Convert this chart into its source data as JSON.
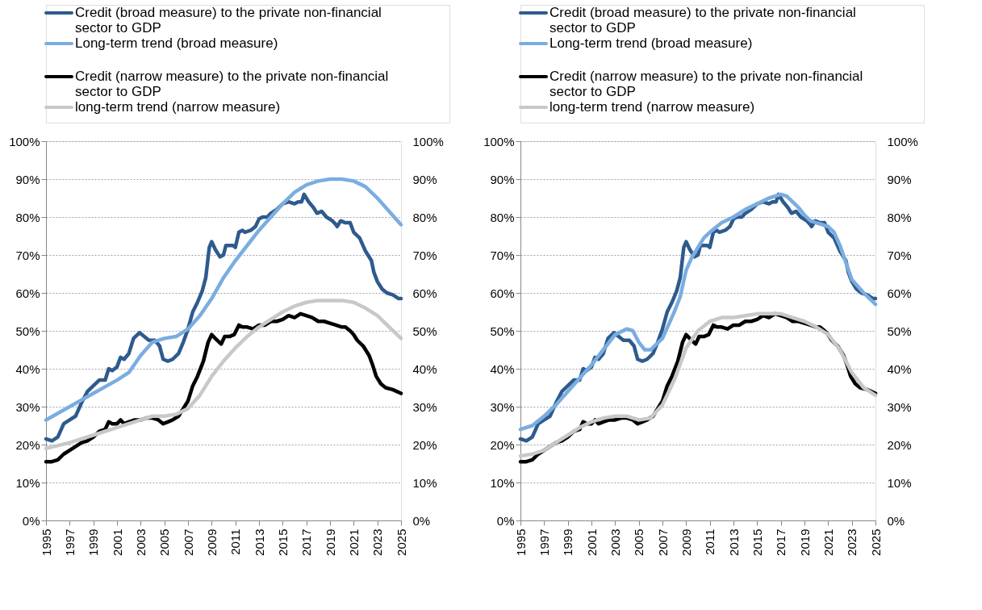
{
  "chart_data": [
    {
      "type": "line",
      "legend": "top",
      "grid": "y",
      "marker": "none",
      "line_style": "solid",
      "xlim": [
        1995,
        2025
      ],
      "xticks": [
        1995,
        1997,
        1999,
        2001,
        2003,
        2005,
        2007,
        2009,
        2011,
        2013,
        2015,
        2017,
        2019,
        2021,
        2023,
        2025
      ],
      "ylim": [
        0,
        100
      ],
      "yticks": [
        {
          "value": 0,
          "label": "0%"
        },
        {
          "value": 10,
          "label": "10%"
        },
        {
          "value": 20,
          "label": "20%"
        },
        {
          "value": 30,
          "label": "30%"
        },
        {
          "value": 40,
          "label": "40%"
        },
        {
          "value": 50,
          "label": "50%"
        },
        {
          "value": 60,
          "label": "60%"
        },
        {
          "value": 70,
          "label": "70%"
        },
        {
          "value": 80,
          "label": "80%"
        },
        {
          "value": 90,
          "label": "90%"
        },
        {
          "value": 100,
          "label": "100%"
        }
      ],
      "y2lim": [
        0,
        100
      ],
      "y2ticks": [
        {
          "value": 0,
          "label": "0%"
        },
        {
          "value": 10,
          "label": "10%"
        },
        {
          "value": 20,
          "label": "20%"
        },
        {
          "value": 30,
          "label": "30%"
        },
        {
          "value": 40,
          "label": "40%"
        },
        {
          "value": 50,
          "label": "50%"
        },
        {
          "value": 60,
          "label": "60%"
        },
        {
          "value": 70,
          "label": "70%"
        },
        {
          "value": 80,
          "label": "80%"
        },
        {
          "value": 90,
          "label": "90%"
        },
        {
          "value": 100,
          "label": "100%"
        }
      ],
      "series": [
        {
          "name": "Credit (broad measure) to the private non-financial sector to GDP",
          "color": "#2e5a8e",
          "x": [
            1995,
            1995.5,
            1996,
            1996.5,
            1997,
            1997.5,
            1998,
            1998.5,
            1999,
            1999.5,
            2000,
            2000.3,
            2000.6,
            2001,
            2001.3,
            2001.6,
            2002,
            2002.4,
            2002.9,
            2003.3,
            2003.7,
            2004.2,
            2004.6,
            2004.9,
            2005.3,
            2005.7,
            2006.2,
            2006.6,
            2007,
            2007.4,
            2007.8,
            2008.2,
            2008.5,
            2008.8,
            2009,
            2009.3,
            2009.7,
            2010,
            2010.2,
            2010.5,
            2010.8,
            2011,
            2011.3,
            2011.6,
            2011.8,
            2012.3,
            2012.7,
            2013,
            2013.3,
            2013.7,
            2014,
            2014.5,
            2015,
            2015.5,
            2016,
            2016.3,
            2016.6,
            2016.8,
            2017.2,
            2017.6,
            2017.9,
            2018.3,
            2018.7,
            2019.2,
            2019.5,
            2019.6,
            2019.9,
            2020.3,
            2020.7,
            2021,
            2021.5,
            2022,
            2022.5,
            2022.7,
            2023,
            2023.4,
            2023.8,
            2024.3,
            2024.8,
            2025
          ],
          "values": [
            21.5,
            21,
            22,
            25.5,
            26.5,
            27.5,
            31,
            34,
            35.5,
            37,
            37,
            40,
            39.5,
            40.5,
            43,
            42.5,
            44,
            48,
            49.5,
            48.5,
            47.5,
            47.5,
            46,
            42.5,
            42,
            42.5,
            44,
            47,
            50.5,
            55,
            57.5,
            60.5,
            64,
            72,
            73.5,
            71.5,
            69.5,
            70,
            72.5,
            72.5,
            72.5,
            72,
            76,
            76.5,
            76,
            76.5,
            77.5,
            79.5,
            80,
            80,
            81,
            82,
            83.5,
            84,
            83.5,
            84,
            84,
            86,
            84,
            82.5,
            81,
            81.5,
            80,
            79,
            78,
            77.5,
            79,
            78.5,
            78.5,
            76,
            74.5,
            71,
            68.5,
            65.5,
            63,
            61,
            60,
            59.5,
            58.5,
            58.5
          ]
        },
        {
          "name": "Long-term trend (broad measure)",
          "color": "#7aade0",
          "x": [
            1995,
            1997,
            1999,
            2001,
            2002,
            2003,
            2004,
            2005,
            2006,
            2007,
            2008,
            2009,
            2010,
            2011,
            2012,
            2013,
            2014,
            2015,
            2016,
            2017,
            2018,
            2019,
            2020,
            2021,
            2022,
            2023,
            2024,
            2025
          ],
          "values": [
            26.5,
            30,
            33.5,
            37,
            39,
            43.5,
            47,
            48,
            48.5,
            50.5,
            54,
            58.5,
            64,
            68.5,
            72.5,
            76.5,
            80,
            83.5,
            86.5,
            88.5,
            89.5,
            90,
            90,
            89.5,
            88,
            85,
            81.5,
            78
          ]
        },
        {
          "name": "Credit (narrow measure) to the private non-financial sector to GDP",
          "color": "#000000",
          "x": [
            1995,
            1995.5,
            1996,
            1996.5,
            1997,
            1997.5,
            1998,
            1998.5,
            1999,
            1999.5,
            2000,
            2000.3,
            2000.6,
            2001,
            2001.3,
            2001.6,
            2002,
            2002.5,
            2003,
            2003.5,
            2004,
            2004.5,
            2004.9,
            2005.3,
            2005.7,
            2006.2,
            2006.6,
            2007,
            2007.4,
            2007.8,
            2008.3,
            2008.7,
            2009,
            2009.3,
            2009.8,
            2010.1,
            2010.5,
            2010.9,
            2011.3,
            2011.6,
            2012,
            2012.5,
            2013,
            2013.5,
            2014,
            2014.5,
            2015,
            2015.5,
            2016,
            2016.5,
            2017,
            2017.5,
            2018,
            2018.5,
            2019,
            2019.5,
            2020,
            2020.3,
            2020.7,
            2021,
            2021.3,
            2021.8,
            2022.3,
            2022.6,
            2022.9,
            2023.3,
            2023.7,
            2024.3,
            2025
          ],
          "values": [
            15.5,
            15.5,
            16,
            17.5,
            18.5,
            19.5,
            20.5,
            21,
            22,
            23.5,
            24,
            26,
            25.5,
            25.5,
            26.5,
            25.5,
            26,
            26.5,
            26.5,
            27,
            27,
            26.5,
            25.5,
            26,
            26.5,
            27.5,
            29.5,
            31.5,
            35.5,
            38,
            42,
            47,
            49,
            48,
            46.5,
            48.5,
            48.5,
            49,
            51.5,
            51,
            51,
            50.5,
            51.5,
            51.5,
            52.5,
            52.5,
            53,
            54,
            53.5,
            54.5,
            54,
            53.5,
            52.5,
            52.5,
            52,
            51.5,
            51,
            51,
            50,
            49,
            47.5,
            46,
            43.5,
            41,
            38,
            36,
            35,
            34.5,
            33.5
          ]
        },
        {
          "name": "long-term trend (narrow measure)",
          "color": "#c8c8c8",
          "x": [
            1995,
            1997,
            1999,
            2001,
            2003,
            2004,
            2005,
            2006,
            2007,
            2008,
            2009,
            2010,
            2011,
            2012,
            2013,
            2014,
            2015,
            2016,
            2017,
            2018,
            2019,
            2020,
            2021,
            2022,
            2023,
            2024,
            2025
          ],
          "values": [
            19,
            20.5,
            22.5,
            24.5,
            26.5,
            27.5,
            27.5,
            28,
            29.5,
            33,
            38,
            42,
            45.5,
            48.5,
            51,
            53,
            55,
            56.5,
            57.5,
            58,
            58,
            58,
            57.5,
            56,
            54,
            51,
            48
          ]
        }
      ]
    },
    {
      "type": "line",
      "legend": "top",
      "grid": "y",
      "marker": "none",
      "line_style": "solid",
      "xlim": [
        1995,
        2025
      ],
      "xticks": [
        1995,
        1997,
        1999,
        2001,
        2003,
        2005,
        2007,
        2009,
        2011,
        2013,
        2015,
        2017,
        2019,
        2021,
        2023,
        2025
      ],
      "ylim": [
        0,
        100
      ],
      "yticks": [
        {
          "value": 0,
          "label": "0%"
        },
        {
          "value": 10,
          "label": "10%"
        },
        {
          "value": 20,
          "label": "20%"
        },
        {
          "value": 30,
          "label": "30%"
        },
        {
          "value": 40,
          "label": "40%"
        },
        {
          "value": 50,
          "label": "50%"
        },
        {
          "value": 60,
          "label": "60%"
        },
        {
          "value": 70,
          "label": "70%"
        },
        {
          "value": 80,
          "label": "80%"
        },
        {
          "value": 90,
          "label": "90%"
        },
        {
          "value": 100,
          "label": "100%"
        }
      ],
      "y2lim": [
        0,
        100
      ],
      "y2ticks": [
        {
          "value": 0,
          "label": "0%"
        },
        {
          "value": 10,
          "label": "10%"
        },
        {
          "value": 20,
          "label": "20%"
        },
        {
          "value": 30,
          "label": "30%"
        },
        {
          "value": 40,
          "label": "40%"
        },
        {
          "value": 50,
          "label": "50%"
        },
        {
          "value": 60,
          "label": "60%"
        },
        {
          "value": 70,
          "label": "70%"
        },
        {
          "value": 80,
          "label": "80%"
        },
        {
          "value": 90,
          "label": "90%"
        },
        {
          "value": 100,
          "label": "100%"
        }
      ],
      "series": [
        {
          "name": "Credit (broad measure) to the private non-financial sector to GDP",
          "color": "#2e5a8e",
          "x": [
            1995,
            1995.5,
            1996,
            1996.5,
            1997,
            1997.5,
            1998,
            1998.5,
            1999,
            1999.5,
            2000,
            2000.3,
            2000.6,
            2001,
            2001.3,
            2001.6,
            2002,
            2002.4,
            2002.9,
            2003.3,
            2003.7,
            2004.2,
            2004.6,
            2004.9,
            2005.3,
            2005.7,
            2006.2,
            2006.6,
            2007,
            2007.4,
            2007.8,
            2008.2,
            2008.5,
            2008.8,
            2009,
            2009.3,
            2009.7,
            2010,
            2010.2,
            2010.5,
            2010.8,
            2011,
            2011.3,
            2011.6,
            2011.8,
            2012.3,
            2012.7,
            2013,
            2013.3,
            2013.7,
            2014,
            2014.5,
            2015,
            2015.5,
            2016,
            2016.3,
            2016.6,
            2016.8,
            2017.2,
            2017.6,
            2017.9,
            2018.3,
            2018.7,
            2019.2,
            2019.5,
            2019.6,
            2019.9,
            2020.3,
            2020.7,
            2021,
            2021.5,
            2022,
            2022.5,
            2022.7,
            2023,
            2023.4,
            2023.8,
            2024.3,
            2024.8,
            2025
          ],
          "values": [
            21.5,
            21,
            22,
            25.5,
            26.5,
            27.5,
            31,
            34,
            35.5,
            37,
            37,
            40,
            39.5,
            40.5,
            43,
            42.5,
            44,
            48,
            49.5,
            48.5,
            47.5,
            47.5,
            46,
            42.5,
            42,
            42.5,
            44,
            47,
            50.5,
            55,
            57.5,
            60.5,
            64,
            72,
            73.5,
            71.5,
            69.5,
            70,
            72.5,
            72.5,
            72.5,
            72,
            76,
            76.5,
            76,
            76.5,
            77.5,
            79.5,
            80,
            80,
            81,
            82,
            83.5,
            84,
            83.5,
            84,
            84,
            86,
            84,
            82.5,
            81,
            81.5,
            80,
            79,
            78,
            77.5,
            79,
            78.5,
            78.5,
            76,
            74.5,
            71,
            68.5,
            65.5,
            63,
            61,
            60,
            59.5,
            58.5,
            58.5
          ]
        },
        {
          "name": "Long-term trend (broad measure)",
          "color": "#7aade0",
          "x": [
            1995,
            1996,
            1997,
            1998,
            1999,
            2000,
            2001,
            2002,
            2003,
            2004,
            2004.5,
            2005,
            2005.5,
            2006,
            2007,
            2008,
            2008.5,
            2009,
            2009.5,
            2010,
            2010.5,
            2011,
            2012,
            2013,
            2014,
            2015,
            2016,
            2017,
            2017.5,
            2018,
            2018.5,
            2019,
            2019.5,
            2020,
            2021,
            2021.5,
            2022,
            2022.5,
            2023,
            2024,
            2025
          ],
          "values": [
            24,
            25,
            27.5,
            30.5,
            34,
            37.5,
            41,
            45,
            49,
            50.5,
            50,
            47,
            45,
            45,
            48,
            55,
            59,
            66,
            69.5,
            72,
            74.5,
            76,
            78.5,
            80,
            82,
            83.5,
            85,
            86,
            85.5,
            84,
            82.5,
            80.5,
            79,
            78.5,
            77.5,
            76,
            72.5,
            68,
            63.5,
            60,
            57
          ]
        },
        {
          "name": "Credit (narrow measure) to the private non-financial sector to GDP",
          "color": "#000000",
          "x": [
            1995,
            1995.5,
            1996,
            1996.5,
            1997,
            1997.5,
            1998,
            1998.5,
            1999,
            1999.5,
            2000,
            2000.3,
            2000.6,
            2001,
            2001.3,
            2001.6,
            2002,
            2002.5,
            2003,
            2003.5,
            2004,
            2004.5,
            2004.9,
            2005.3,
            2005.7,
            2006.2,
            2006.6,
            2007,
            2007.4,
            2007.8,
            2008.3,
            2008.7,
            2009,
            2009.3,
            2009.8,
            2010.1,
            2010.5,
            2010.9,
            2011.3,
            2011.6,
            2012,
            2012.5,
            2013,
            2013.5,
            2014,
            2014.5,
            2015,
            2015.5,
            2016,
            2016.5,
            2017,
            2017.5,
            2018,
            2018.5,
            2019,
            2019.5,
            2020,
            2020.3,
            2020.7,
            2021,
            2021.3,
            2021.8,
            2022.3,
            2022.6,
            2022.9,
            2023.3,
            2023.7,
            2024.3,
            2025
          ],
          "values": [
            15.5,
            15.5,
            16,
            17.5,
            18.5,
            19.5,
            20.5,
            21,
            22,
            23.5,
            24,
            26,
            25.5,
            25.5,
            26.5,
            25.5,
            26,
            26.5,
            26.5,
            27,
            27,
            26.5,
            25.5,
            26,
            26.5,
            27.5,
            29.5,
            31.5,
            35.5,
            38,
            42,
            47,
            49,
            48,
            46.5,
            48.5,
            48.5,
            49,
            51.5,
            51,
            51,
            50.5,
            51.5,
            51.5,
            52.5,
            52.5,
            53,
            54,
            53.5,
            54.5,
            54,
            53.5,
            52.5,
            52.5,
            52,
            51.5,
            51,
            51,
            50,
            49,
            47.5,
            46,
            43.5,
            41,
            38,
            36,
            35,
            34.5,
            33.5
          ]
        },
        {
          "name": "long-term trend (narrow measure)",
          "color": "#c8c8c8",
          "x": [
            1995,
            1996,
            1997,
            1998,
            1999,
            2000,
            2001,
            2002,
            2003,
            2004,
            2005,
            2006,
            2007,
            2008,
            2009,
            2010,
            2011,
            2012,
            2013,
            2014,
            2015,
            2016,
            2017,
            2018,
            2019,
            2020,
            2021,
            2022,
            2023,
            2024,
            2025
          ],
          "values": [
            17,
            17.5,
            18.5,
            20.5,
            22.5,
            24.5,
            26,
            27,
            27.5,
            27.5,
            26.5,
            27,
            30.5,
            37,
            45.5,
            50,
            52.5,
            53.5,
            53.5,
            54,
            54.5,
            54.5,
            54.5,
            53.5,
            52.5,
            51,
            49,
            45,
            39,
            35,
            33
          ]
        }
      ]
    }
  ]
}
